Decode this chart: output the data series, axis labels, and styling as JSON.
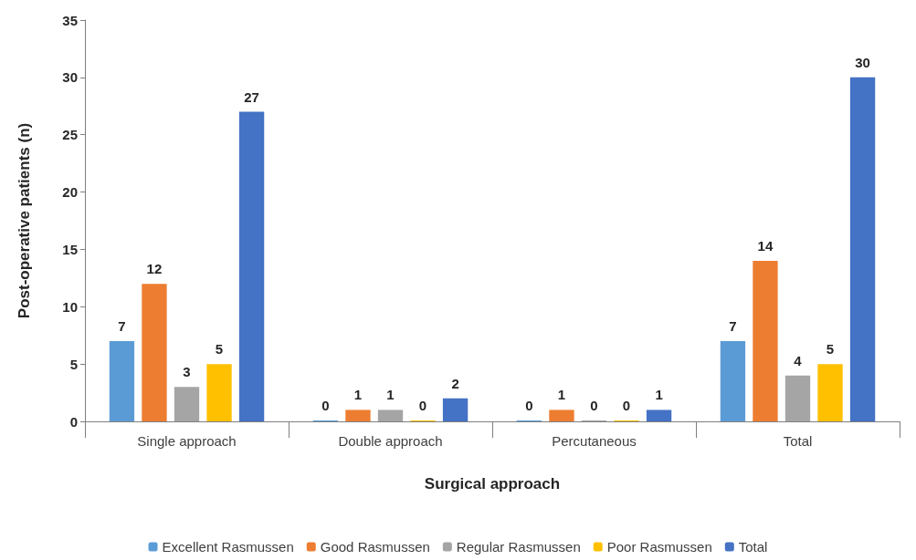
{
  "chart_data": {
    "type": "bar",
    "xlabel": "Surgical approach",
    "ylabel": "Post-operative patients (n)",
    "categories": [
      "Single approach",
      "Double approach",
      "Percutaneous",
      "Total"
    ],
    "series": [
      {
        "name": "Excellent Rasmussen",
        "color": "#5b9bd5",
        "values": [
          7,
          0,
          0,
          7
        ]
      },
      {
        "name": "Good Rasmussen",
        "color": "#ed7d31",
        "values": [
          12,
          1,
          1,
          14
        ]
      },
      {
        "name": "Regular Rasmussen",
        "color": "#a5a5a5",
        "values": [
          3,
          1,
          0,
          4
        ]
      },
      {
        "name": "Poor Rasmussen",
        "color": "#ffc000",
        "values": [
          5,
          0,
          0,
          5
        ]
      },
      {
        "name": "Total",
        "color": "#4472c4",
        "values": [
          27,
          2,
          1,
          30
        ]
      }
    ],
    "ylim": [
      0,
      35
    ],
    "yticks": [
      0,
      5,
      10,
      15,
      20,
      25,
      30,
      35
    ],
    "data_labels": true,
    "grid": false,
    "legend": "bottom"
  }
}
